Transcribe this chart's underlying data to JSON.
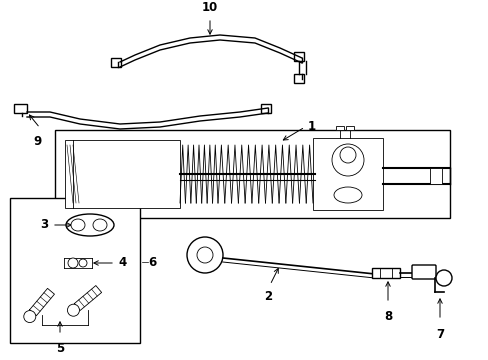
{
  "bg_color": "#ffffff",
  "line_color": "#000000",
  "lw": 1.0,
  "tlw": 0.6,
  "fs": 8.5,
  "fig_w": 4.89,
  "fig_h": 3.6,
  "dpi": 100
}
